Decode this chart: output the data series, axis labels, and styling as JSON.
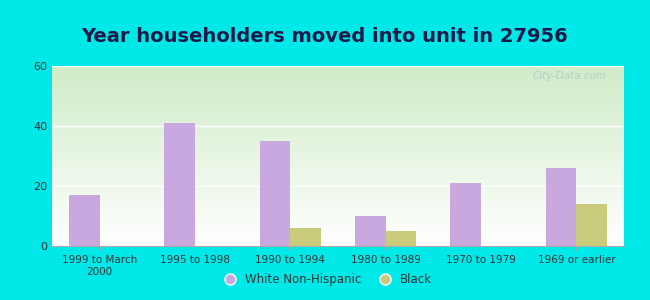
{
  "title": "Year householders moved into unit in 27956",
  "categories": [
    "1999 to March\n2000",
    "1995 to 1998",
    "1990 to 1994",
    "1980 to 1989",
    "1970 to 1979",
    "1969 or earlier"
  ],
  "white_values": [
    17,
    41,
    35,
    10,
    21,
    26
  ],
  "black_values": [
    0,
    0,
    6,
    5,
    0,
    14
  ],
  "white_color": "#c9a8e0",
  "black_color": "#c8cc7a",
  "ylim": [
    0,
    60
  ],
  "yticks": [
    0,
    20,
    40,
    60
  ],
  "background_outer": "#00e8e8",
  "title_fontsize": 14,
  "title_color": "#1a1a4a",
  "bar_width": 0.32
}
